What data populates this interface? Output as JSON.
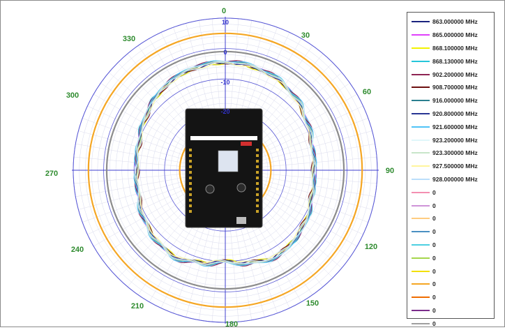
{
  "chart_data": {
    "type": "polar-line",
    "angular_ticks": [
      "0",
      "30",
      "60",
      "90",
      "120",
      "150",
      "180",
      "210",
      "240",
      "270",
      "300",
      "330"
    ],
    "radial_ticks": [
      "10",
      "0",
      "-10",
      "-20"
    ],
    "radial_range": [
      -40,
      10
    ],
    "grid": true,
    "legend_position": "right",
    "angles_deg": [
      0,
      15,
      30,
      45,
      60,
      75,
      90,
      105,
      120,
      135,
      150,
      165,
      180,
      195,
      210,
      225,
      240,
      255,
      270,
      285,
      300,
      315,
      330,
      345
    ],
    "base_pattern_dbi": [
      -4.5,
      -4.8,
      -5.5,
      -7,
      -9,
      -10.5,
      -11,
      -10.5,
      -9,
      -7.8,
      -7,
      -8.5,
      -10,
      -8.5,
      -7,
      -7.8,
      -9,
      -10.5,
      -11,
      -10.5,
      -9,
      -7,
      -5.5,
      -4.8
    ],
    "series": [
      {
        "name": "863.000000 MHz",
        "color": "#1a237e",
        "offset": 0.0
      },
      {
        "name": "865.000000 MHz",
        "color": "#e040fb",
        "offset": 0.2
      },
      {
        "name": "868.100000 MHz",
        "color": "#f3f300",
        "offset": -0.2
      },
      {
        "name": "868.130000 MHz",
        "color": "#26c6da",
        "offset": 0.3
      },
      {
        "name": "902.200000 MHz",
        "color": "#8e2452",
        "offset": 0.4
      },
      {
        "name": "908.700000 MHz",
        "color": "#6d0f0f",
        "offset": -0.3
      },
      {
        "name": "916.000000 MHz",
        "color": "#2a7f8f",
        "offset": 0.1
      },
      {
        "name": "920.800000 MHz",
        "color": "#283593",
        "offset": -0.1
      },
      {
        "name": "921.600000 MHz",
        "color": "#4fc3f7",
        "offset": 0.5
      },
      {
        "name": "923.200000 MHz",
        "color": "#e0f7fa",
        "offset": -0.4
      },
      {
        "name": "923.300000 MHz",
        "color": "#c8e6c9",
        "offset": 0.25
      },
      {
        "name": "927.500000 MHz",
        "color": "#fff59d",
        "offset": -0.25
      },
      {
        "name": "928.000000 MHz",
        "color": "#bbdefb",
        "offset": 0.15
      }
    ],
    "reference_rings": [
      {
        "value": 5,
        "color": "#f5a623"
      },
      {
        "value": -1,
        "color": "#8c8c8c"
      },
      {
        "value": -25,
        "color": "#f5a623"
      },
      {
        "value": -35,
        "color": "#f5a623"
      }
    ]
  },
  "legend": {
    "items": [
      {
        "label": "863.000000 MHz",
        "color": "#1a237e"
      },
      {
        "label": "865.000000 MHz",
        "color": "#e040fb"
      },
      {
        "label": "868.100000 MHz",
        "color": "#f3f300"
      },
      {
        "label": "868.130000 MHz",
        "color": "#26c6da"
      },
      {
        "label": "902.200000 MHz",
        "color": "#8e2452"
      },
      {
        "label": "908.700000 MHz",
        "color": "#6d0f0f"
      },
      {
        "label": "916.000000 MHz",
        "color": "#2a7f8f"
      },
      {
        "label": "920.800000 MHz",
        "color": "#283593"
      },
      {
        "label": "921.600000 MHz",
        "color": "#4fc3f7"
      },
      {
        "label": "923.200000 MHz",
        "color": "#e0f7fa"
      },
      {
        "label": "923.300000 MHz",
        "color": "#c8e6c9"
      },
      {
        "label": "927.500000 MHz",
        "color": "#fff59d"
      },
      {
        "label": "928.000000 MHz",
        "color": "#bbdefb"
      },
      {
        "label": "0",
        "color": "#f48fb1"
      },
      {
        "label": "0",
        "color": "#ce93d8"
      },
      {
        "label": "0",
        "color": "#ffcc80"
      },
      {
        "label": "0",
        "color": "#4a90c2"
      },
      {
        "label": "0",
        "color": "#4dd0e1"
      },
      {
        "label": "0",
        "color": "#a5d64c"
      },
      {
        "label": "0",
        "color": "#f3e000"
      },
      {
        "label": "0",
        "color": "#f5a623"
      },
      {
        "label": "0",
        "color": "#ef6c00"
      },
      {
        "label": "0",
        "color": "#7b2d8b"
      },
      {
        "label": "0",
        "color": "#9e9e9e"
      }
    ]
  },
  "device_image": {
    "description_icon": "dev-board-icon"
  }
}
